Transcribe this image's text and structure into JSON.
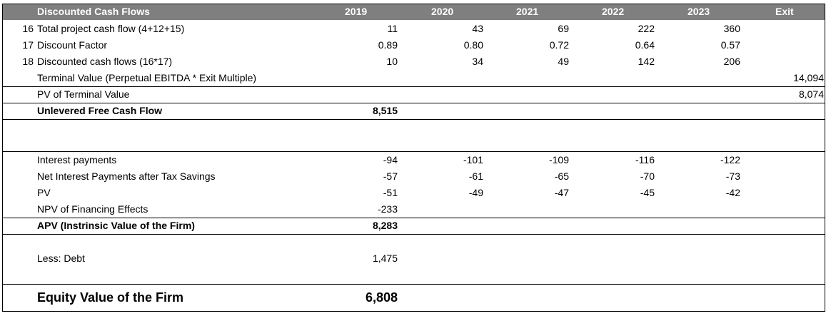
{
  "header": {
    "title": "Discounted Cash Flows",
    "years": [
      "2019",
      "2020",
      "2021",
      "2022",
      "2023"
    ],
    "exit": "Exit"
  },
  "dcf_rows": [
    {
      "num": "16",
      "label": "Total project cash flow (4+12+15)",
      "values": [
        "11",
        "43",
        "69",
        "222",
        "360"
      ],
      "exit": ""
    },
    {
      "num": "17",
      "label": "Discount Factor",
      "values": [
        "0.89",
        "0.80",
        "0.72",
        "0.64",
        "0.57"
      ],
      "exit": ""
    },
    {
      "num": "18",
      "label": "Discounted cash flows (16*17)",
      "values": [
        "10",
        "34",
        "49",
        "142",
        "206"
      ],
      "exit": ""
    },
    {
      "num": "",
      "label": "Terminal Value (Perpetual EBITDA * Exit Multiple)",
      "values": [
        "",
        "",
        "",
        "",
        ""
      ],
      "exit": "14,094"
    },
    {
      "num": "",
      "label": "PV of Terminal Value",
      "values": [
        "",
        "",
        "",
        "",
        ""
      ],
      "exit": "8,074"
    }
  ],
  "ufcf": {
    "label": "Unlevered Free Cash Flow",
    "value": "8,515"
  },
  "financing_rows": [
    {
      "label": "Interest payments",
      "values": [
        "-94",
        "-101",
        "-109",
        "-116",
        "-122"
      ]
    },
    {
      "label": "Net Interest Payments after Tax Savings",
      "values": [
        "-57",
        "-61",
        "-65",
        "-70",
        "-73"
      ]
    },
    {
      "label": "PV",
      "values": [
        "-51",
        "-49",
        "-47",
        "-45",
        "-42"
      ]
    },
    {
      "label": "NPV of Financing Effects",
      "values": [
        "-233",
        "",
        "",
        "",
        ""
      ]
    }
  ],
  "apv": {
    "label": "APV (Instrinsic Value of the Firm)",
    "value": "8,283"
  },
  "debt": {
    "label": "Less: Debt",
    "value": "1,475"
  },
  "equity": {
    "label": "Equity Value of the Firm",
    "value": "6,808"
  }
}
